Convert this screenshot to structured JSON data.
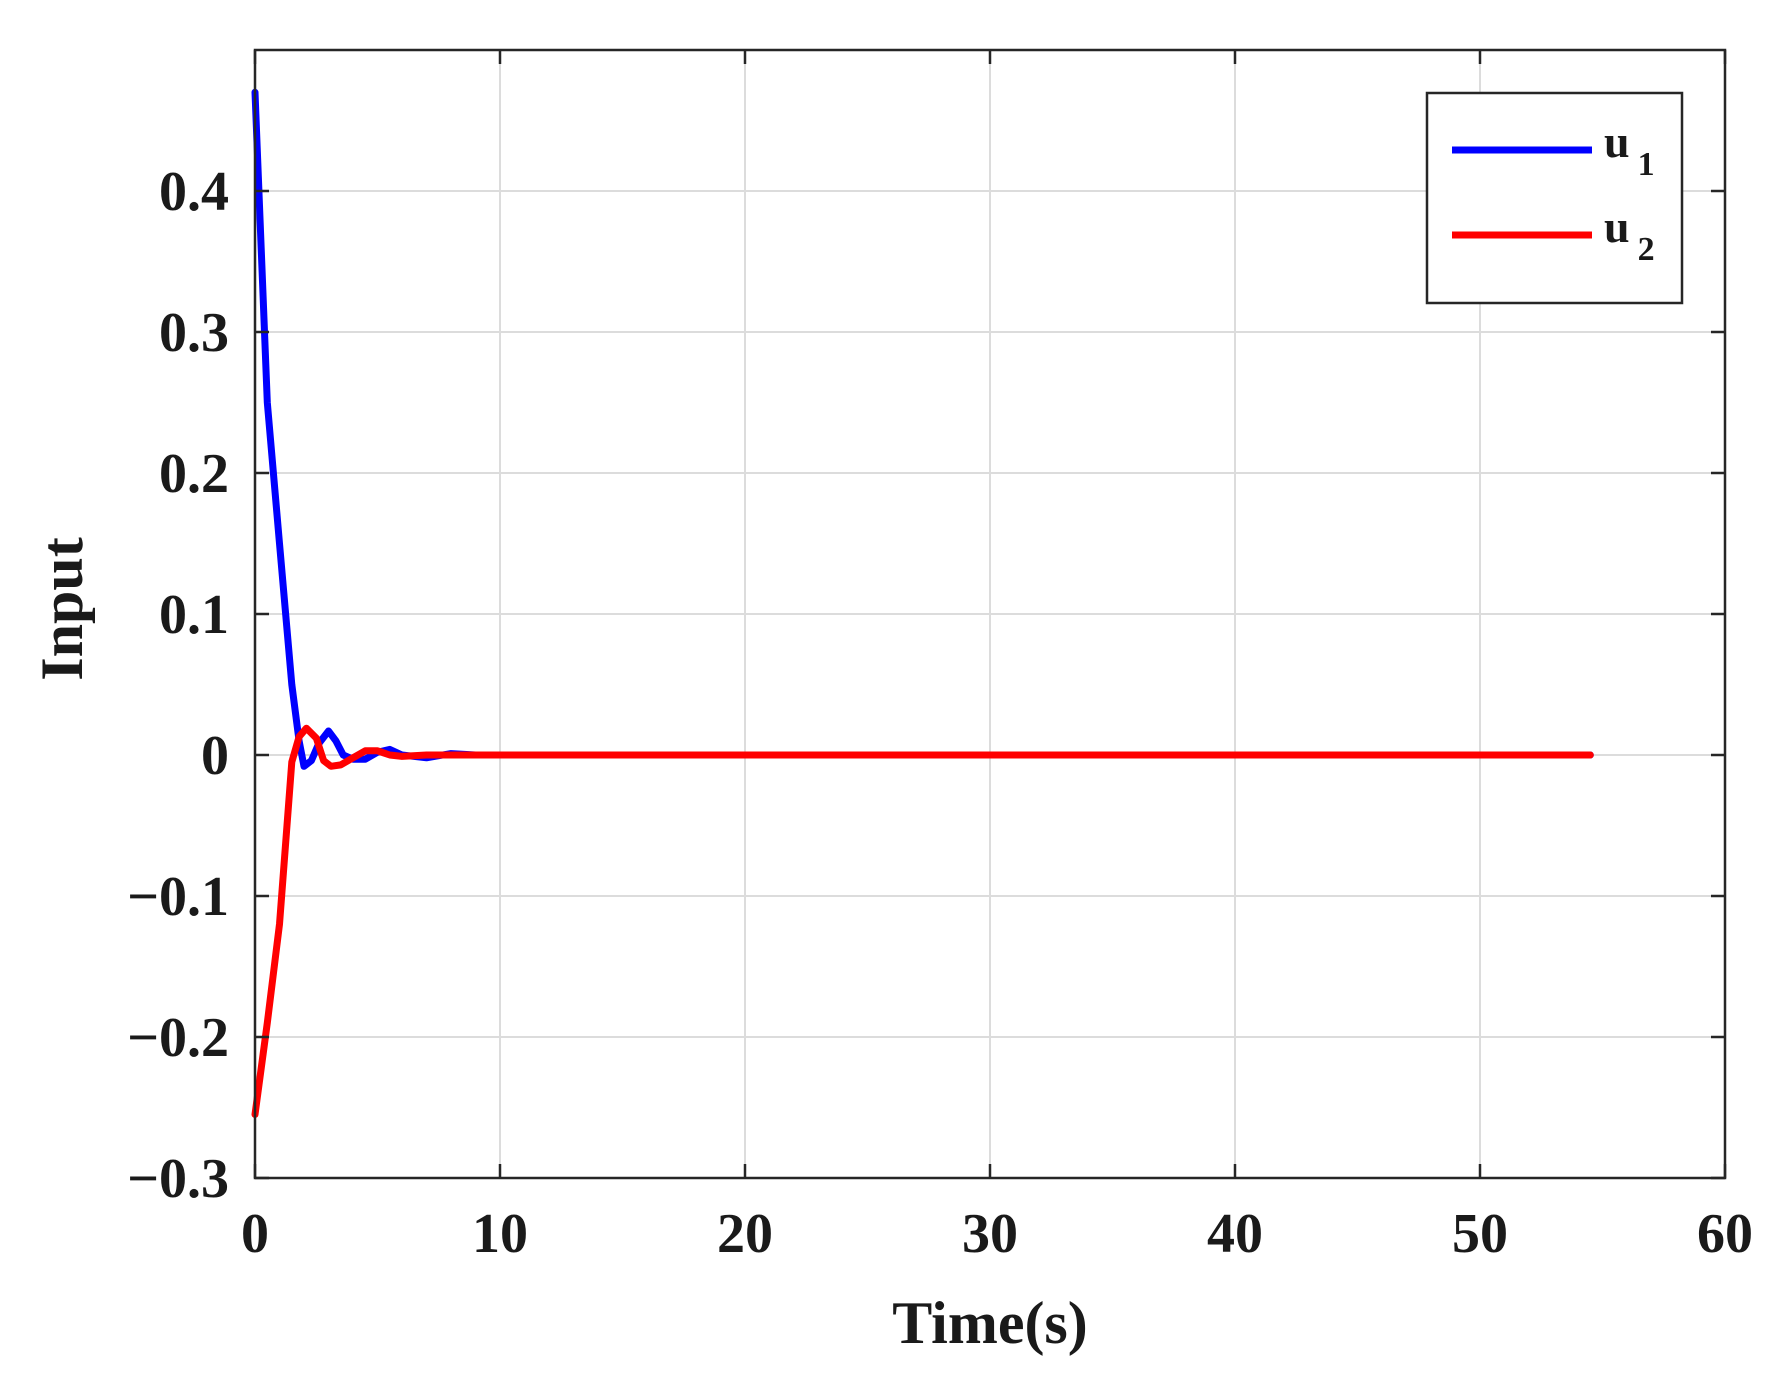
{
  "chart_data": {
    "type": "line",
    "xlabel": "Time(s)",
    "ylabel": "Input",
    "xlim": [
      0,
      60
    ],
    "ylim": [
      -0.3,
      0.5
    ],
    "xticks": [
      0,
      10,
      20,
      30,
      40,
      50,
      60
    ],
    "xtick_labels": [
      "0",
      "10",
      "20",
      "30",
      "40",
      "50",
      "60"
    ],
    "yticks": [
      -0.3,
      -0.2,
      -0.1,
      0,
      0.1,
      0.2,
      0.3,
      0.4
    ],
    "ytick_labels": [
      "−0.3",
      "−0.2",
      "−0.1",
      "0",
      "0.1",
      "0.2",
      "0.3",
      "0.4"
    ],
    "grid": true,
    "legend_position": "top-right",
    "series": [
      {
        "name": "u",
        "subscript": "1",
        "color": "#0000ff",
        "x": [
          0,
          0.5,
          1.0,
          1.5,
          1.8,
          2.0,
          2.3,
          2.6,
          3.0,
          3.3,
          3.6,
          4.0,
          4.5,
          5.0,
          5.5,
          6.0,
          7.0,
          8.0,
          9.0,
          20,
          40,
          54.5
        ],
        "y": [
          0.47,
          0.25,
          0.15,
          0.05,
          0.01,
          -0.008,
          -0.004,
          0.008,
          0.017,
          0.01,
          0.0,
          -0.003,
          -0.003,
          0.002,
          0.004,
          0.0,
          -0.002,
          0.001,
          0.0,
          0.0,
          0.0,
          0.0
        ]
      },
      {
        "name": "u",
        "subscript": "2",
        "color": "#ff0000",
        "x": [
          0,
          0.5,
          1.0,
          1.5,
          1.8,
          2.1,
          2.5,
          2.8,
          3.1,
          3.5,
          4.0,
          4.5,
          5.0,
          5.5,
          6.0,
          7.0,
          8.0,
          20,
          40,
          54.5
        ],
        "y": [
          -0.255,
          -0.19,
          -0.12,
          -0.005,
          0.013,
          0.019,
          0.012,
          -0.004,
          -0.008,
          -0.007,
          -0.002,
          0.003,
          0.003,
          0.0,
          -0.001,
          0.0,
          0.0,
          0.0,
          0.0,
          0.0
        ]
      }
    ]
  }
}
